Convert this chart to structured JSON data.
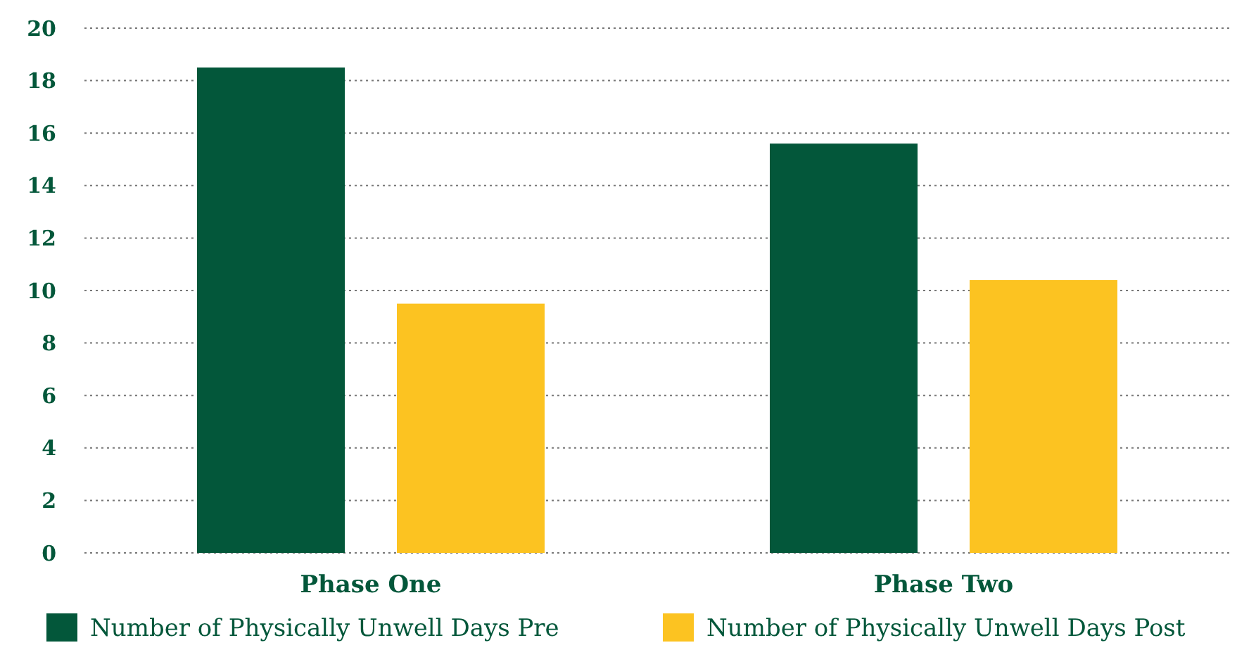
{
  "chart_data": {
    "type": "bar",
    "categories": [
      "Phase One",
      "Phase Two"
    ],
    "series": [
      {
        "name": "Number of Physically Unwell Days Pre",
        "color": "#03573a",
        "values": [
          18.5,
          15.6
        ]
      },
      {
        "name": "Number of Physically Unwell Days Post",
        "color": "#fcc321",
        "values": [
          9.5,
          10.4
        ]
      }
    ],
    "ylim": [
      0,
      20
    ],
    "yticks": [
      0,
      2,
      4,
      6,
      8,
      10,
      12,
      14,
      16,
      18,
      20
    ],
    "grid": "y",
    "legend": "bottom"
  }
}
